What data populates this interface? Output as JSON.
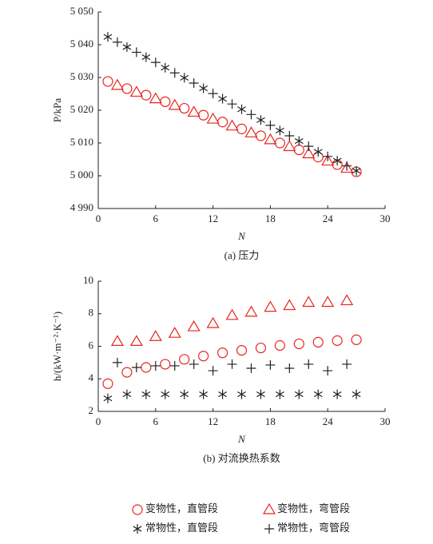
{
  "chart_data": [
    {
      "type": "scatter",
      "caption": "(a) 压力",
      "xlabel": "N",
      "ylabel": "P/kPa",
      "xlim": [
        0,
        30
      ],
      "xticks": [
        0,
        6,
        12,
        18,
        24,
        30
      ],
      "ylim": [
        4990,
        5050
      ],
      "yticks": [
        {
          "value": 4990,
          "label": "4 990"
        },
        {
          "value": 5000,
          "label": "5 000"
        },
        {
          "value": 5010,
          "label": "5 010"
        },
        {
          "value": 5020,
          "label": "5 020"
        },
        {
          "value": 5030,
          "label": "5 030"
        },
        {
          "value": 5040,
          "label": "5 040"
        },
        {
          "value": 5050,
          "label": "5 050"
        }
      ],
      "series": [
        {
          "marker": "circle",
          "color": "#e8251e",
          "x": [
            1,
            3,
            5,
            7,
            9,
            11,
            13,
            15,
            17,
            19,
            21,
            23,
            25,
            27
          ],
          "values": [
            5028.8,
            5026.6,
            5024.6,
            5022.6,
            5020.6,
            5018.5,
            5016.4,
            5014.3,
            5012.2,
            5010,
            5007.9,
            5005.7,
            5003.4,
            5001.2
          ]
        },
        {
          "marker": "triangle",
          "color": "#e8251e",
          "x": [
            2,
            4,
            6,
            8,
            10,
            12,
            14,
            16,
            18,
            20,
            22,
            24,
            26
          ],
          "values": [
            5027.6,
            5025.5,
            5023.5,
            5021.5,
            5019.4,
            5017.3,
            5015.2,
            5013.1,
            5011,
            5008.9,
            5006.7,
            5004.5,
            5002.3
          ]
        },
        {
          "marker": "asterisk",
          "color": "#222222",
          "x": [
            1,
            3,
            5,
            7,
            9,
            11,
            13,
            15,
            17,
            19,
            21,
            23,
            25,
            27
          ],
          "values": [
            5042.4,
            5039.3,
            5036.2,
            5033,
            5029.9,
            5026.7,
            5023.5,
            5020.3,
            5017,
            5013.8,
            5010.6,
            5007.3,
            5004.6,
            5001.5
          ]
        },
        {
          "marker": "plus",
          "color": "#222222",
          "x": [
            2,
            4,
            6,
            8,
            10,
            12,
            14,
            16,
            18,
            20,
            22,
            24,
            26
          ],
          "values": [
            5040.8,
            5037.7,
            5034.6,
            5031.4,
            5028.3,
            5025.1,
            5021.9,
            5018.7,
            5015.4,
            5012.2,
            5009,
            5005.9,
            5003
          ]
        }
      ]
    },
    {
      "type": "scatter",
      "caption": "(b) 对流换热系数",
      "xlabel": "N",
      "ylabel": "h/(kW·m⁻²·K⁻¹)",
      "xlim": [
        0,
        30
      ],
      "xticks": [
        0,
        6,
        12,
        18,
        24,
        30
      ],
      "ylim": [
        2,
        10
      ],
      "yticks": [
        2,
        4,
        6,
        8,
        10
      ],
      "series": [
        {
          "name": "变物性，直管段",
          "marker": "circle",
          "color": "#e8251e",
          "x": [
            1,
            3,
            5,
            7,
            9,
            11,
            13,
            15,
            17,
            19,
            21,
            23,
            25,
            27
          ],
          "values": [
            3.7,
            4.4,
            4.7,
            4.9,
            5.2,
            5.4,
            5.6,
            5.75,
            5.9,
            6.05,
            6.15,
            6.25,
            6.35,
            6.4
          ]
        },
        {
          "name": "变物性，弯管段",
          "marker": "triangle",
          "color": "#e8251e",
          "x": [
            2,
            4,
            6,
            8,
            10,
            12,
            14,
            16,
            18,
            20,
            22,
            24,
            26
          ],
          "values": [
            6.3,
            6.3,
            6.6,
            6.8,
            7.2,
            7.4,
            7.9,
            8.1,
            8.4,
            8.5,
            8.7,
            8.7,
            8.8
          ]
        },
        {
          "name": "常物性，直管段",
          "marker": "asterisk",
          "color": "#222222",
          "x": [
            1,
            3,
            5,
            7,
            9,
            11,
            13,
            15,
            17,
            19,
            21,
            23,
            25,
            27
          ],
          "values": [
            2.8,
            3.05,
            3.05,
            3.05,
            3.05,
            3.05,
            3.05,
            3.05,
            3.05,
            3.05,
            3.05,
            3.05,
            3.05,
            3.05
          ]
        },
        {
          "name": "常物性，弯管段",
          "marker": "plus",
          "color": "#222222",
          "x": [
            2,
            4,
            6,
            8,
            10,
            12,
            14,
            16,
            18,
            20,
            22,
            24,
            26
          ],
          "values": [
            5.0,
            4.7,
            4.8,
            4.8,
            4.9,
            4.5,
            4.9,
            4.65,
            4.85,
            4.65,
            4.9,
            4.5,
            4.9
          ]
        }
      ]
    }
  ]
}
